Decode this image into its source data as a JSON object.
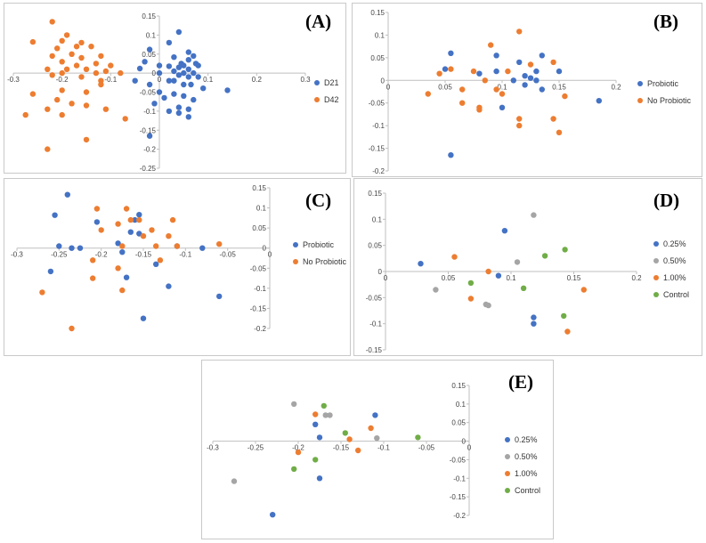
{
  "colors": {
    "blue": "#4472C4",
    "orange": "#ED7D31",
    "gray": "#A5A5A5",
    "green": "#70AD47",
    "axis": "#bfbfbf"
  },
  "chart_data": [
    {
      "type": "scatter",
      "panel_label": "(A)",
      "xlim": [
        -0.3,
        0.3
      ],
      "ylim": [
        -0.25,
        0.15
      ],
      "x_ticks": [
        "-0.3",
        "-0.2",
        "-0.1",
        "0",
        "0.1",
        "0.2",
        "0.3"
      ],
      "y_ticks": [
        "0.15",
        "0.1",
        "0.05",
        "0",
        "-0.05",
        "-0.1",
        "-0.15",
        "-0.2",
        "-0.25"
      ],
      "series": [
        {
          "name": "D21",
          "color": "blue",
          "points": [
            [
              0.04,
              0.108
            ],
            [
              0.02,
              0.08
            ],
            [
              -0.02,
              0.062
            ],
            [
              0.06,
              0.055
            ],
            [
              0.07,
              0.045
            ],
            [
              0.03,
              0.042
            ],
            [
              0.06,
              0.035
            ],
            [
              0.045,
              0.025
            ],
            [
              0.075,
              0.025
            ],
            [
              -0.03,
              0.03
            ],
            [
              0.0,
              0.02
            ],
            [
              0.05,
              0.02
            ],
            [
              0.08,
              0.02
            ],
            [
              0.04,
              0.015
            ],
            [
              0.02,
              0.018
            ],
            [
              0.06,
              0.01
            ],
            [
              0.03,
              0.005
            ],
            [
              0.07,
              0.0
            ],
            [
              -0.04,
              0.012
            ],
            [
              0.05,
              0.0
            ],
            [
              0.0,
              0.0
            ],
            [
              0.04,
              -0.005
            ],
            [
              0.06,
              -0.01
            ],
            [
              0.08,
              -0.01
            ],
            [
              0.02,
              -0.02
            ],
            [
              0.03,
              -0.02
            ],
            [
              0.05,
              -0.03
            ],
            [
              0.065,
              -0.03
            ],
            [
              -0.05,
              -0.02
            ],
            [
              -0.02,
              -0.03
            ],
            [
              0.09,
              -0.04
            ],
            [
              0.14,
              -0.045
            ],
            [
              0.0,
              -0.05
            ],
            [
              0.03,
              -0.055
            ],
            [
              0.05,
              -0.06
            ],
            [
              0.01,
              -0.065
            ],
            [
              0.07,
              -0.07
            ],
            [
              -0.01,
              -0.08
            ],
            [
              0.04,
              -0.09
            ],
            [
              0.06,
              -0.095
            ],
            [
              0.02,
              -0.1
            ],
            [
              0.04,
              -0.105
            ],
            [
              0.06,
              -0.115
            ],
            [
              -0.02,
              -0.165
            ]
          ]
        },
        {
          "name": "D42",
          "color": "orange",
          "points": [
            [
              -0.22,
              0.135
            ],
            [
              -0.19,
              0.1
            ],
            [
              -0.2,
              0.085
            ],
            [
              -0.26,
              0.082
            ],
            [
              -0.16,
              0.08
            ],
            [
              -0.17,
              0.07
            ],
            [
              -0.21,
              0.065
            ],
            [
              -0.14,
              0.07
            ],
            [
              -0.18,
              0.05
            ],
            [
              -0.22,
              0.045
            ],
            [
              -0.16,
              0.04
            ],
            [
              -0.12,
              0.045
            ],
            [
              -0.2,
              0.03
            ],
            [
              -0.13,
              0.025
            ],
            [
              -0.1,
              0.02
            ],
            [
              -0.17,
              0.02
            ],
            [
              -0.19,
              0.01
            ],
            [
              -0.15,
              0.01
            ],
            [
              -0.23,
              0.01
            ],
            [
              -0.11,
              0.005
            ],
            [
              -0.2,
              0.0
            ],
            [
              -0.13,
              0.0
            ],
            [
              -0.08,
              0.0
            ],
            [
              -0.16,
              -0.01
            ],
            [
              -0.22,
              -0.005
            ],
            [
              -0.12,
              -0.02
            ],
            [
              -0.26,
              -0.055
            ],
            [
              -0.2,
              -0.045
            ],
            [
              -0.15,
              -0.05
            ],
            [
              -0.12,
              -0.03
            ],
            [
              -0.21,
              -0.07
            ],
            [
              -0.18,
              -0.08
            ],
            [
              -0.15,
              -0.085
            ],
            [
              -0.23,
              -0.095
            ],
            [
              -0.11,
              -0.095
            ],
            [
              -0.275,
              -0.11
            ],
            [
              -0.2,
              -0.11
            ],
            [
              -0.07,
              -0.12
            ],
            [
              -0.15,
              -0.175
            ],
            [
              -0.23,
              -0.2
            ]
          ]
        }
      ]
    },
    {
      "type": "scatter",
      "panel_label": "(B)",
      "xlim": [
        0,
        0.2
      ],
      "ylim": [
        -0.2,
        0.15
      ],
      "x_ticks": [
        "0",
        "0.05",
        "0.1",
        "0.15",
        "0.2"
      ],
      "y_ticks": [
        "0.15",
        "0.1",
        "0.05",
        "0",
        "-0.05",
        "-0.1",
        "-0.15",
        "-0.2"
      ],
      "series": [
        {
          "name": "Probiotic",
          "color": "blue",
          "points": [
            [
              0.055,
              0.06
            ],
            [
              0.095,
              0.055
            ],
            [
              0.135,
              0.055
            ],
            [
              0.115,
              0.04
            ],
            [
              0.13,
              0.02
            ],
            [
              0.15,
              0.02
            ],
            [
              0.05,
              0.025
            ],
            [
              0.12,
              0.01
            ],
            [
              0.125,
              0.005
            ],
            [
              0.13,
              0.0
            ],
            [
              0.11,
              0.0
            ],
            [
              0.095,
              0.02
            ],
            [
              0.08,
              0.015
            ],
            [
              0.135,
              -0.02
            ],
            [
              0.1,
              -0.06
            ],
            [
              0.185,
              -0.045
            ],
            [
              0.055,
              -0.165
            ],
            [
              0.12,
              -0.01
            ]
          ]
        },
        {
          "name": "No Probiotic",
          "color": "orange",
          "points": [
            [
              0.115,
              0.108
            ],
            [
              0.09,
              0.078
            ],
            [
              0.125,
              0.035
            ],
            [
              0.145,
              0.04
            ],
            [
              0.045,
              0.015
            ],
            [
              0.075,
              0.02
            ],
            [
              0.085,
              0.0
            ],
            [
              0.105,
              0.02
            ],
            [
              0.055,
              0.025
            ],
            [
              0.035,
              -0.03
            ],
            [
              0.08,
              -0.06
            ],
            [
              0.065,
              -0.05
            ],
            [
              0.1,
              -0.03
            ],
            [
              0.095,
              -0.02
            ],
            [
              0.155,
              -0.035
            ],
            [
              0.145,
              -0.085
            ],
            [
              0.115,
              -0.085
            ],
            [
              0.115,
              -0.1
            ],
            [
              0.15,
              -0.115
            ],
            [
              0.08,
              -0.065
            ],
            [
              0.065,
              -0.02
            ]
          ]
        }
      ]
    },
    {
      "type": "scatter",
      "panel_label": "(C)",
      "xlim": [
        -0.3,
        0
      ],
      "ylim": [
        -0.2,
        0.15
      ],
      "x_ticks": [
        "-0.3",
        "-0.25",
        "-0.2",
        "-0.15",
        "-0.1",
        "-0.05",
        "0"
      ],
      "y_ticks": [
        "0.15",
        "0.1",
        "0.05",
        "0",
        "-0.05",
        "-0.1",
        "-0.15",
        "-0.2"
      ],
      "series": [
        {
          "name": "Probiotic",
          "color": "blue",
          "points": [
            [
              -0.24,
              0.133
            ],
            [
              -0.255,
              0.082
            ],
            [
              -0.205,
              0.065
            ],
            [
              -0.155,
              0.083
            ],
            [
              -0.16,
              0.07
            ],
            [
              -0.165,
              0.04
            ],
            [
              -0.155,
              0.036
            ],
            [
              -0.18,
              0.012
            ],
            [
              -0.25,
              0.005
            ],
            [
              -0.235,
              0.0
            ],
            [
              -0.225,
              0.0
            ],
            [
              -0.11,
              0.005
            ],
            [
              -0.08,
              0.0
            ],
            [
              -0.175,
              -0.01
            ],
            [
              -0.135,
              -0.04
            ],
            [
              -0.26,
              -0.058
            ],
            [
              -0.17,
              -0.073
            ],
            [
              -0.12,
              -0.095
            ],
            [
              -0.06,
              -0.12
            ],
            [
              -0.15,
              -0.175
            ]
          ]
        },
        {
          "name": "No Probiotic",
          "color": "orange",
          "points": [
            [
              -0.205,
              0.098
            ],
            [
              -0.17,
              0.098
            ],
            [
              -0.165,
              0.07
            ],
            [
              -0.155,
              0.07
            ],
            [
              -0.115,
              0.07
            ],
            [
              -0.18,
              0.06
            ],
            [
              -0.2,
              0.045
            ],
            [
              -0.14,
              0.045
            ],
            [
              -0.15,
              0.03
            ],
            [
              -0.12,
              0.03
            ],
            [
              -0.175,
              0.005
            ],
            [
              -0.11,
              0.005
            ],
            [
              -0.135,
              0.005
            ],
            [
              -0.21,
              -0.03
            ],
            [
              -0.13,
              -0.03
            ],
            [
              -0.21,
              -0.075
            ],
            [
              -0.18,
              -0.05
            ],
            [
              -0.175,
              -0.105
            ],
            [
              -0.27,
              -0.11
            ],
            [
              -0.06,
              0.01
            ],
            [
              -0.235,
              -0.2
            ]
          ]
        }
      ]
    },
    {
      "type": "scatter",
      "panel_label": "(D)",
      "xlim": [
        0,
        0.2
      ],
      "ylim": [
        -0.15,
        0.15
      ],
      "x_ticks": [
        "0",
        "0.05",
        "0.1",
        "0.15",
        "0.2"
      ],
      "y_ticks": [
        "0.15",
        "0.1",
        "0.05",
        "0",
        "-0.05",
        "-0.1",
        "-0.15"
      ],
      "series": [
        {
          "name": "0.25%",
          "color": "blue",
          "points": [
            [
              0.028,
              0.015
            ],
            [
              0.095,
              0.078
            ],
            [
              0.09,
              -0.008
            ],
            [
              0.118,
              -0.088
            ],
            [
              0.118,
              -0.1
            ]
          ]
        },
        {
          "name": "0.50%",
          "color": "gray",
          "points": [
            [
              0.118,
              0.108
            ],
            [
              0.105,
              0.018
            ],
            [
              0.04,
              -0.035
            ],
            [
              0.08,
              -0.063
            ],
            [
              0.082,
              -0.065
            ]
          ]
        },
        {
          "name": "1.00%",
          "color": "orange",
          "points": [
            [
              0.055,
              0.028
            ],
            [
              0.082,
              0.0
            ],
            [
              0.158,
              -0.035
            ],
            [
              0.068,
              -0.052
            ],
            [
              0.145,
              -0.115
            ]
          ]
        },
        {
          "name": "Control",
          "color": "green",
          "points": [
            [
              0.143,
              0.042
            ],
            [
              0.127,
              0.03
            ],
            [
              0.068,
              -0.022
            ],
            [
              0.11,
              -0.032
            ],
            [
              0.142,
              -0.085
            ]
          ]
        }
      ]
    },
    {
      "type": "scatter",
      "panel_label": "(E)",
      "xlim": [
        -0.3,
        0
      ],
      "ylim": [
        -0.2,
        0.15
      ],
      "x_ticks": [
        "-0.3",
        "-0.25",
        "-0.2",
        "-0.15",
        "-0.1",
        "-0.05",
        "0"
      ],
      "y_ticks": [
        "0.15",
        "0.1",
        "0.05",
        "0",
        "-0.05",
        "-0.1",
        "-0.15",
        "-0.2"
      ],
      "series": [
        {
          "name": "0.25%",
          "color": "blue",
          "points": [
            [
              -0.11,
              0.07
            ],
            [
              -0.18,
              0.045
            ],
            [
              -0.175,
              0.01
            ],
            [
              -0.175,
              -0.1
            ],
            [
              -0.23,
              -0.198
            ]
          ]
        },
        {
          "name": "0.50%",
          "color": "gray",
          "points": [
            [
              -0.205,
              0.1
            ],
            [
              -0.168,
              0.07
            ],
            [
              -0.163,
              0.07
            ],
            [
              -0.108,
              0.008
            ],
            [
              -0.275,
              -0.108
            ]
          ]
        },
        {
          "name": "1.00%",
          "color": "orange",
          "points": [
            [
              -0.18,
              0.072
            ],
            [
              -0.115,
              0.035
            ],
            [
              -0.14,
              0.005
            ],
            [
              -0.13,
              -0.025
            ],
            [
              -0.2,
              -0.03
            ]
          ]
        },
        {
          "name": "Control",
          "color": "green",
          "points": [
            [
              -0.17,
              0.095
            ],
            [
              -0.145,
              0.022
            ],
            [
              -0.06,
              0.01
            ],
            [
              -0.18,
              -0.05
            ],
            [
              -0.205,
              -0.075
            ]
          ]
        }
      ]
    }
  ]
}
